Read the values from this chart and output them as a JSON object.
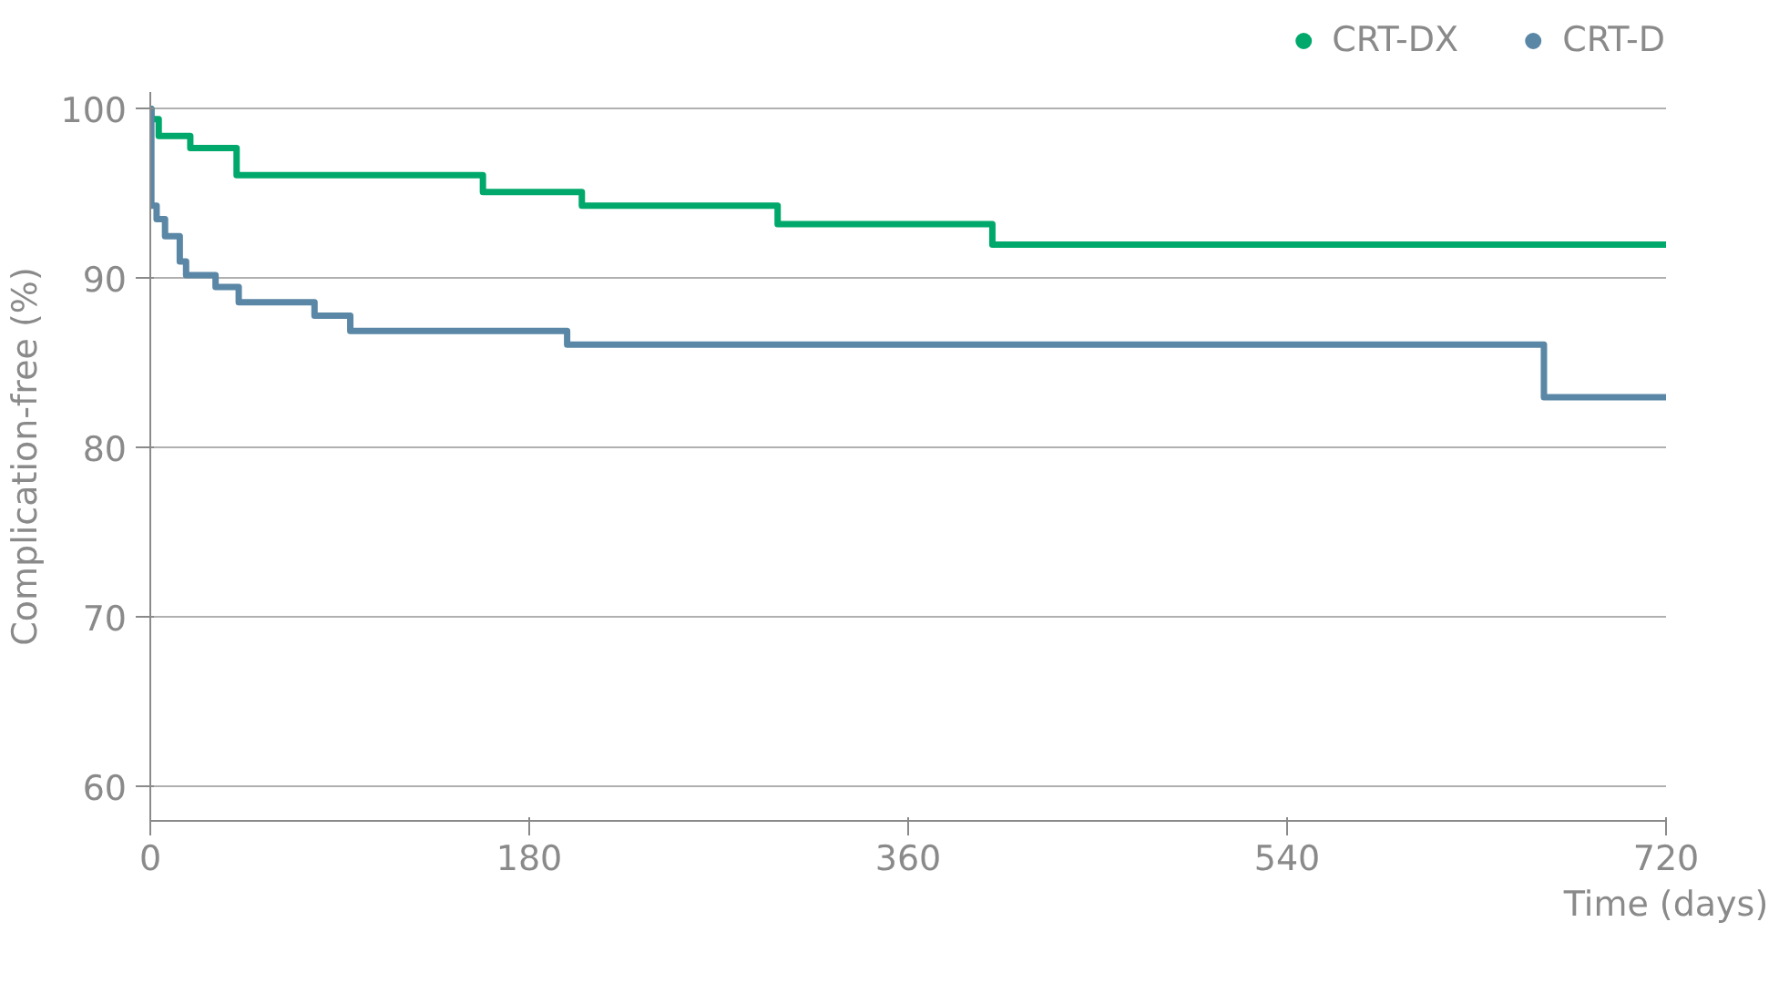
{
  "chart_data": {
    "type": "step",
    "xlabel": "Time (days)",
    "ylabel": "Complication-free (%)",
    "xlim": [
      0,
      720
    ],
    "xticks": [
      0,
      180,
      360,
      540,
      720
    ],
    "ylim": [
      58,
      101
    ],
    "yticks": [
      60,
      70,
      80,
      90,
      100
    ],
    "grid": "y",
    "legend": "top right",
    "series": [
      {
        "name": "CRT-DX",
        "color": "#00a86b",
        "x": [
          0,
          0.5,
          4,
          19,
          41,
          158,
          205,
          298,
          400,
          720
        ],
        "values": [
          100,
          99.4,
          98.4,
          97.7,
          96.1,
          95.1,
          94.3,
          93.2,
          92.0,
          92.0
        ]
      },
      {
        "name": "CRT-D",
        "color": "#5a87a6",
        "x": [
          0,
          0.5,
          3,
          7,
          14,
          17,
          31,
          42,
          78,
          95,
          198,
          662,
          720
        ],
        "values": [
          100,
          94.3,
          93.5,
          92.5,
          91.0,
          90.2,
          89.5,
          88.6,
          87.8,
          86.9,
          86.1,
          83.0,
          83.0
        ]
      }
    ]
  }
}
